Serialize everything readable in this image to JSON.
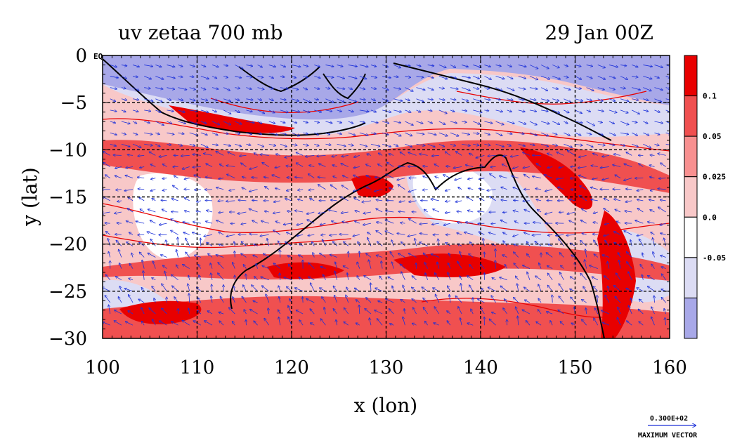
{
  "header": {
    "title": "uv zetaa 700 mb",
    "date": "29 Jan 00Z"
  },
  "chart_data": {
    "type": "heatmap",
    "title": "uv zetaa 700 mb",
    "subtitle": "29 Jan 00Z",
    "xlabel": "x (lon)",
    "ylabel": "y (lat)",
    "xlim": [
      100,
      160
    ],
    "ylim": [
      -30,
      0
    ],
    "x_ticks": [
      "100",
      "110",
      "120",
      "130",
      "140",
      "150",
      "160"
    ],
    "y_ticks": [
      "0",
      "−5",
      "−10",
      "−15",
      "−20",
      "−25",
      "−30"
    ],
    "x_tick_values": [
      100,
      110,
      120,
      130,
      140,
      150,
      160
    ],
    "y_tick_values": [
      0,
      -5,
      -10,
      -15,
      -20,
      -25,
      -30
    ],
    "eq_label": "EQ",
    "grid": true,
    "colorbar": {
      "boundaries": [
        "0.1",
        "0.05",
        "0.025",
        "0.0",
        "-0.05"
      ],
      "boundary_values": [
        0.1,
        0.05,
        0.025,
        0.0,
        -0.05
      ],
      "colors": [
        "#e80000",
        "#f05050",
        "#f89090",
        "#f8c8c8",
        "#ffffff",
        "#dcdcf4",
        "#a8a8e8"
      ]
    },
    "vector_key": {
      "value": "0.300E+02",
      "label": "MAXIMUM VECTOR"
    }
  }
}
